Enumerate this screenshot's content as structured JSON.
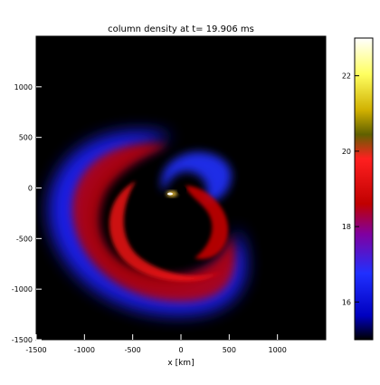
{
  "title": "column density at t= 19.906 ms",
  "plot": {
    "xlabel": "x [km]",
    "x_range": [
      -1500,
      1500
    ],
    "y_range": [
      -1500,
      1500
    ],
    "x_ticks": [
      "-1500",
      "-1000",
      "-500",
      "0",
      "500",
      "1000"
    ],
    "y_ticks": [
      "-1500",
      "-1000",
      "-500",
      "0",
      "500",
      "1000"
    ],
    "background": "#000000"
  },
  "colorbar": {
    "range": [
      15,
      23
    ],
    "ticks": [
      "16",
      "18",
      "20",
      "22"
    ],
    "palette": [
      "#000000",
      "#1a1aff",
      "#3040ff",
      "#b00000",
      "#ff2020",
      "#e8c000",
      "#ffff80",
      "#ffffff"
    ]
  }
}
